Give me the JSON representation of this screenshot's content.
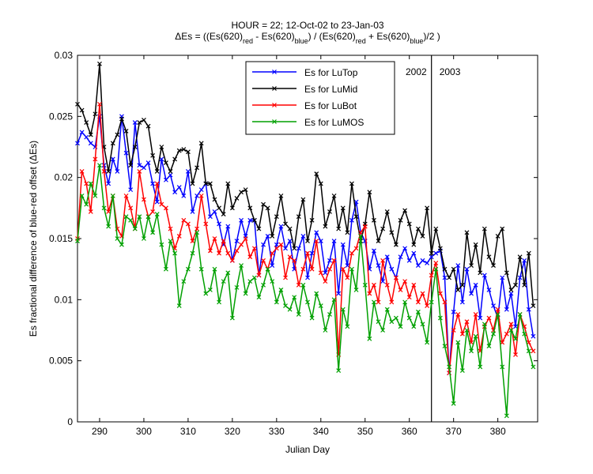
{
  "chart_data": {
    "type": "line",
    "title": "HOUR = 22; 12-Oct-02 to 23-Jan-03",
    "title_line2": [
      "ΔEs = ((Es(620)",
      "red",
      " - Es(620)",
      "blue",
      ") / (Es(620)",
      "red",
      " + Es(620)",
      "blue",
      ")/2  )"
    ],
    "xlabel": "Julian Day",
    "ylabel": "Es fractional difference of blue-red offset (ΔEs)",
    "xlim": [
      285,
      389
    ],
    "ylim": [
      0,
      0.03
    ],
    "xticks": [
      290,
      300,
      310,
      320,
      330,
      340,
      350,
      360,
      370,
      380
    ],
    "yticks": [
      0,
      0.005,
      0.01,
      0.015,
      0.02,
      0.025,
      0.03
    ],
    "legend": "north",
    "vline": {
      "x": 365,
      "labels": [
        "2002",
        "2003"
      ]
    },
    "x": [
      285,
      286,
      287,
      288,
      289,
      290,
      291,
      292,
      293,
      294,
      295,
      296,
      297,
      298,
      299,
      300,
      301,
      302,
      303,
      304,
      305,
      306,
      307,
      308,
      309,
      310,
      311,
      312,
      313,
      314,
      315,
      316,
      317,
      318,
      319,
      320,
      321,
      322,
      323,
      324,
      325,
      326,
      327,
      328,
      329,
      330,
      331,
      332,
      333,
      334,
      335,
      336,
      337,
      338,
      339,
      340,
      341,
      342,
      343,
      344,
      345,
      346,
      347,
      348,
      349,
      350,
      351,
      352,
      353,
      354,
      355,
      356,
      357,
      358,
      359,
      360,
      361,
      362,
      363,
      364,
      365,
      366,
      367,
      368,
      369,
      370,
      371,
      372,
      373,
      374,
      375,
      376,
      377,
      378,
      379,
      380,
      381,
      382,
      383,
      384,
      385,
      386,
      387,
      388
    ],
    "series": [
      {
        "name": "Es for LuTop",
        "color": "#0000ff",
        "values": [
          0.0228,
          0.0237,
          0.0233,
          0.0228,
          0.0225,
          0.025,
          0.021,
          0.0195,
          0.0215,
          0.0205,
          0.025,
          0.022,
          0.019,
          0.0245,
          0.021,
          0.0208,
          0.0212,
          0.0195,
          0.018,
          0.0215,
          0.0198,
          0.0202,
          0.0188,
          0.0192,
          0.0185,
          0.0205,
          0.0172,
          0.0185,
          0.019,
          0.0195,
          0.0168,
          0.0172,
          0.0162,
          0.0145,
          0.016,
          0.0132,
          0.0148,
          0.0165,
          0.0152,
          0.0165,
          0.0165,
          0.012,
          0.0145,
          0.0152,
          0.0128,
          0.0145,
          0.016,
          0.0142,
          0.0148,
          0.0125,
          0.0142,
          0.0152,
          0.0118,
          0.0138,
          0.0155,
          0.0148,
          0.0122,
          0.0132,
          0.0148,
          0.0105,
          0.0145,
          0.0128,
          0.0165,
          0.018,
          0.0155,
          0.0148,
          0.0125,
          0.014,
          0.0128,
          0.0115,
          0.0135,
          0.0125,
          0.0118,
          0.0135,
          0.0142,
          0.0132,
          0.0138,
          0.0128,
          0.0132,
          0.013,
          0.0135,
          0.0138,
          0.014,
          0.0118,
          0.004,
          0.009,
          0.0128,
          0.0098,
          0.0125,
          0.0105,
          0.0112,
          0.0085,
          0.012,
          0.0108,
          0.0095,
          0.0085,
          0.0118,
          0.0092,
          0.0105,
          0.0078,
          0.0118,
          0.0132,
          0.0092,
          0.007
        ]
      },
      {
        "name": "Es for LuMid",
        "color": "#000000",
        "values": [
          0.026,
          0.0255,
          0.0245,
          0.0235,
          0.0252,
          0.0293,
          0.0225,
          0.0205,
          0.0228,
          0.0235,
          0.0248,
          0.0238,
          0.021,
          0.0225,
          0.0245,
          0.0247,
          0.0242,
          0.0218,
          0.0205,
          0.0225,
          0.0212,
          0.0205,
          0.0215,
          0.0222,
          0.0223,
          0.0221,
          0.0195,
          0.0208,
          0.0228,
          0.0195,
          0.0195,
          0.0182,
          0.0175,
          0.017,
          0.0195,
          0.0175,
          0.0183,
          0.0188,
          0.019,
          0.0175,
          0.0165,
          0.0158,
          0.0178,
          0.0175,
          0.0152,
          0.0168,
          0.0185,
          0.0162,
          0.0158,
          0.0142,
          0.0168,
          0.0182,
          0.0148,
          0.0165,
          0.0203,
          0.0195,
          0.016,
          0.0172,
          0.0185,
          0.0158,
          0.0175,
          0.0155,
          0.0195,
          0.0168,
          0.0148,
          0.0162,
          0.0188,
          0.0165,
          0.0148,
          0.0158,
          0.0172,
          0.0155,
          0.0145,
          0.0165,
          0.0173,
          0.0162,
          0.0145,
          0.0158,
          0.0152,
          0.0175,
          0.0138,
          0.0158,
          0.0142,
          0.0125,
          0.0118,
          0.0125,
          0.0108,
          0.0112,
          0.0155,
          0.0128,
          0.0145,
          0.0122,
          0.0158,
          0.0135,
          0.0128,
          0.0152,
          0.0158,
          0.0122,
          0.0108,
          0.0112,
          0.0135,
          0.0112,
          0.0138,
          0.0095
        ]
      },
      {
        "name": "Es for LuBot",
        "color": "#ff0000",
        "values": [
          0.015,
          0.0205,
          0.0195,
          0.0172,
          0.0215,
          0.026,
          0.0205,
          0.0172,
          0.0185,
          0.0158,
          0.0152,
          0.0185,
          0.0175,
          0.0158,
          0.0205,
          0.0182,
          0.0168,
          0.0172,
          0.0195,
          0.0178,
          0.0175,
          0.0158,
          0.0142,
          0.0152,
          0.0165,
          0.0162,
          0.0148,
          0.0158,
          0.0185,
          0.0162,
          0.014,
          0.015,
          0.0138,
          0.0148,
          0.0138,
          0.0132,
          0.014,
          0.0145,
          0.015,
          0.0135,
          0.0142,
          0.012,
          0.0132,
          0.0125,
          0.0138,
          0.0142,
          0.0145,
          0.0118,
          0.0135,
          0.0132,
          0.0112,
          0.0125,
          0.0138,
          0.0125,
          0.0148,
          0.0122,
          0.0115,
          0.0125,
          0.0132,
          0.0055,
          0.0125,
          0.0118,
          0.0138,
          0.0142,
          0.0155,
          0.016,
          0.0105,
          0.0112,
          0.0098,
          0.0132,
          0.0112,
          0.0098,
          0.0118,
          0.0108,
          0.0115,
          0.0102,
          0.0112,
          0.0098,
          0.0105,
          0.0095,
          0.012,
          0.013,
          0.0105,
          0.0098,
          0.004,
          0.0075,
          0.0088,
          0.0072,
          0.0082,
          0.0065,
          0.0088,
          0.0058,
          0.0078,
          0.0085,
          0.0075,
          0.0092,
          0.0065,
          0.0072,
          0.008,
          0.0055,
          0.0088,
          0.0078,
          0.0065,
          0.0058
        ]
      },
      {
        "name": "Es for LuMOS",
        "color": "#00a000",
        "values": [
          0.0148,
          0.0185,
          0.0178,
          0.0195,
          0.0185,
          0.021,
          0.0175,
          0.016,
          0.0185,
          0.015,
          0.0145,
          0.0168,
          0.0165,
          0.0158,
          0.0168,
          0.015,
          0.0168,
          0.0155,
          0.017,
          0.0145,
          0.0125,
          0.0148,
          0.0138,
          0.0095,
          0.0115,
          0.0125,
          0.0138,
          0.0155,
          0.0125,
          0.0105,
          0.0108,
          0.0125,
          0.0098,
          0.0115,
          0.0122,
          0.0085,
          0.011,
          0.0128,
          0.0105,
          0.0115,
          0.0118,
          0.0102,
          0.0112,
          0.0125,
          0.0115,
          0.0098,
          0.0108,
          0.0095,
          0.0092,
          0.0102,
          0.0088,
          0.0112,
          0.0098,
          0.0085,
          0.0105,
          0.0095,
          0.0075,
          0.0088,
          0.01,
          0.0042,
          0.0092,
          0.0078,
          0.0125,
          0.0108,
          0.0152,
          0.0112,
          0.0068,
          0.0098,
          0.0082,
          0.0075,
          0.0092,
          0.0082,
          0.0085,
          0.0078,
          0.0098,
          0.0085,
          0.0078,
          0.009,
          0.008,
          0.0065,
          0.0098,
          0.0125,
          0.0085,
          0.0062,
          0.0045,
          0.0015,
          0.0065,
          0.0042,
          0.0075,
          0.0058,
          0.007,
          0.0045,
          0.008,
          0.0062,
          0.0072,
          0.0088,
          0.0045,
          0.0005,
          0.0075,
          0.0068,
          0.0088,
          0.0072,
          0.0058,
          0.0045
        ]
      }
    ]
  }
}
